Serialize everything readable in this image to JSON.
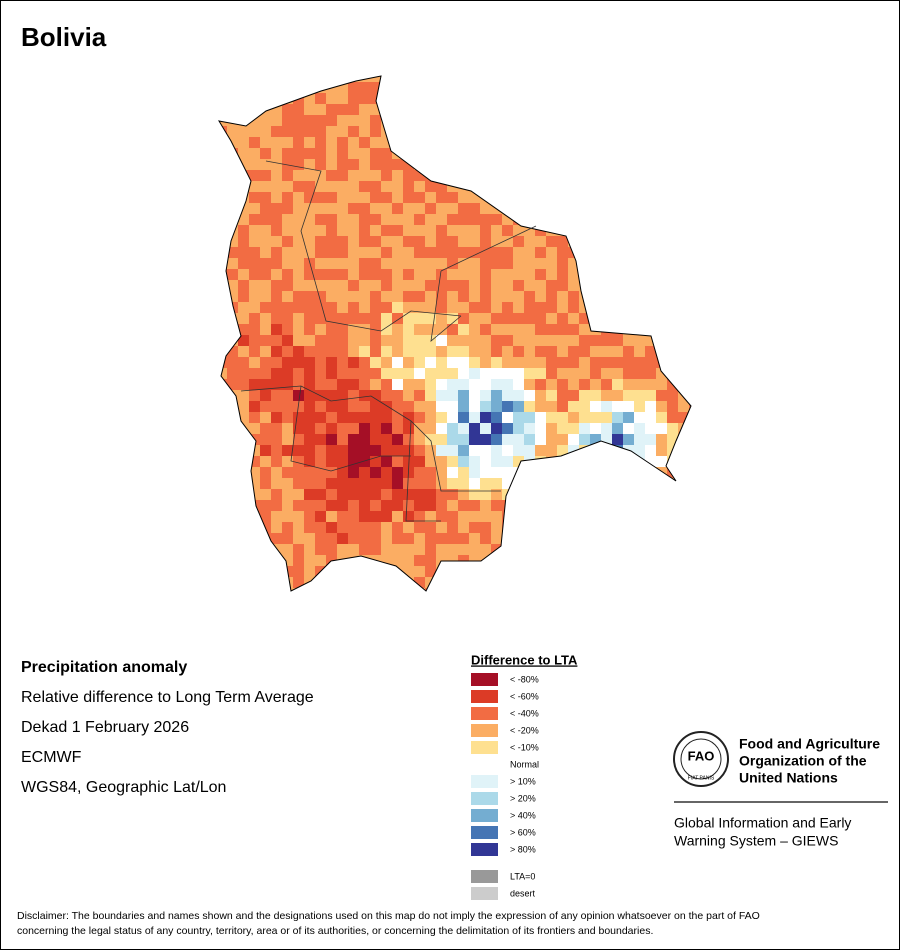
{
  "title": "Bolivia",
  "info": {
    "heading": "Precipitation anomaly",
    "lines": [
      "Relative difference to Long Term Average",
      "Dekad 1 February 2026",
      "ECMWF",
      "WGS84, Geographic Lat/Lon"
    ]
  },
  "legend": {
    "title": "Difference to LTA",
    "items": [
      {
        "label": "< -80%",
        "color": "#a50f26"
      },
      {
        "label": "< -60%",
        "color": "#dc3b26"
      },
      {
        "label": "< -40%",
        "color": "#f26c43"
      },
      {
        "label": "< -20%",
        "color": "#fbad63"
      },
      {
        "label": "< -10%",
        "color": "#fee090"
      },
      {
        "label": "Normal",
        "color": "#ffffff"
      },
      {
        "label": "> 10%",
        "color": "#e0f3f8"
      },
      {
        "label": "> 20%",
        "color": "#abd9e9"
      },
      {
        "label": "> 40%",
        "color": "#74add1"
      },
      {
        "label": "> 60%",
        "color": "#4575b4"
      },
      {
        "label": "> 80%",
        "color": "#313695"
      }
    ],
    "extra": [
      {
        "label": "LTA=0",
        "color": "#999999"
      },
      {
        "label": "desert",
        "color": "#cccccc"
      }
    ]
  },
  "logo": {
    "emblem": "FAO",
    "motto": "FIAT PANIS",
    "org": [
      "Food and Agriculture",
      "Organization of the",
      "United Nations"
    ],
    "system": [
      "Global Information and Early",
      "Warning System – GIEWS"
    ]
  },
  "disclaimer": [
    "Disclaimer: The boundaries and names shown and the designations used on this map do not imply the expression of any opinion whatsoever on the part of FAO",
    "concerning the legal status of any country, territory, area or of its authorities, or concerning the delimitation of its frontiers and boundaries."
  ]
}
